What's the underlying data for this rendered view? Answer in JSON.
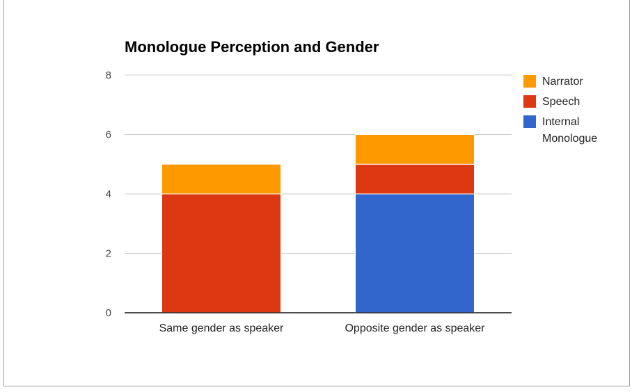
{
  "chart_data": {
    "type": "bar",
    "stacked": true,
    "title": "Monologue Perception and Gender",
    "xlabel": "",
    "ylabel": "",
    "categories": [
      "Same gender as speaker",
      "Opposite gender as speaker"
    ],
    "series": [
      {
        "name": "Internal Monologue",
        "color": "#3366cc",
        "values": [
          0,
          4
        ]
      },
      {
        "name": "Speech",
        "color": "#dc3912",
        "values": [
          4,
          1
        ]
      },
      {
        "name": "Narrator",
        "color": "#ff9900",
        "values": [
          1,
          1
        ]
      }
    ],
    "ylim": [
      0,
      8
    ],
    "yticks": [
      0,
      2,
      4,
      6,
      8
    ],
    "grid": true,
    "legend_position": "right",
    "legend_order": [
      "Narrator",
      "Speech",
      "Internal Monologue"
    ]
  }
}
